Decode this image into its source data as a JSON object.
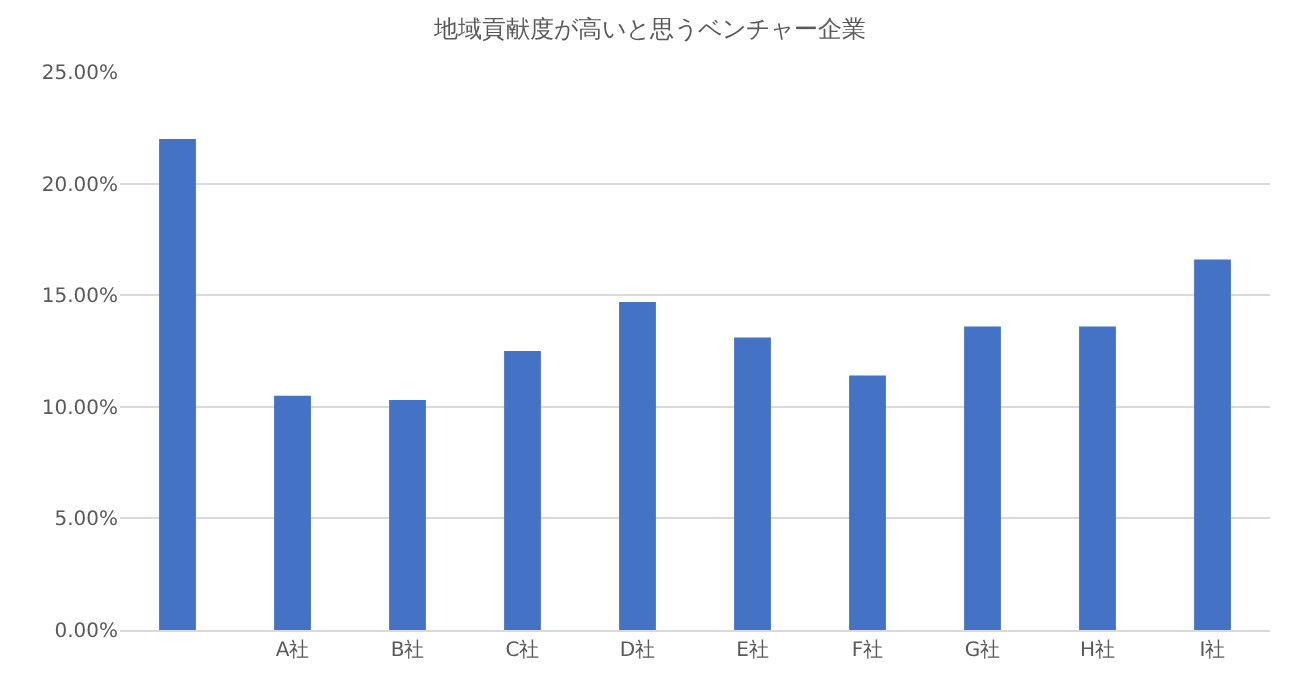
{
  "chart_data": {
    "type": "bar",
    "title": "地域貢献度が高いと思うベンチャー企業",
    "categories": [
      null,
      "A社",
      "B社",
      "C社",
      "D社",
      "E社",
      "F社",
      "G社",
      "H社",
      "I社"
    ],
    "values": [
      22.0,
      10.5,
      10.3,
      12.5,
      14.7,
      13.1,
      11.4,
      13.6,
      13.6,
      16.6
    ],
    "color": "#4472c4",
    "ylim": [
      0,
      25
    ],
    "yticks": [
      {
        "value": 0,
        "label": "0.00%"
      },
      {
        "value": 5,
        "label": "5.00%"
      },
      {
        "value": 10,
        "label": "10.00%"
      },
      {
        "value": 15,
        "label": "15.00%"
      },
      {
        "value": 20,
        "label": "20.00%"
      },
      {
        "value": 25,
        "label": "25.00%"
      }
    ],
    "grid": "y"
  }
}
